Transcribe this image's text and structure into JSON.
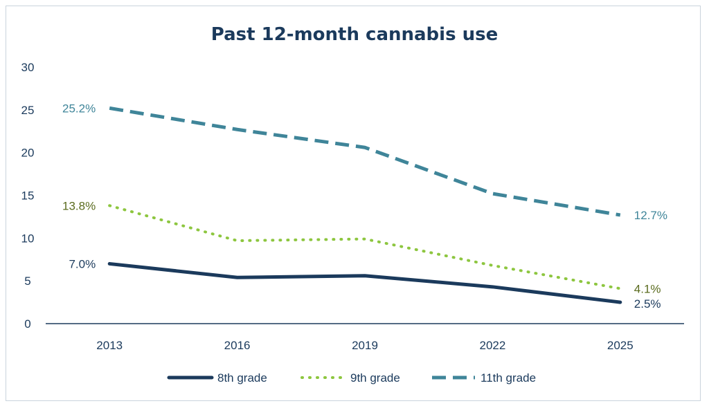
{
  "chart_data": {
    "type": "line",
    "title": "Past 12-month cannabis use",
    "categories": [
      "2013",
      "2016",
      "2019",
      "2022",
      "2025"
    ],
    "ylim": [
      0,
      30
    ],
    "yticks": [
      "0",
      "5",
      "10",
      "15",
      "20",
      "25",
      "30"
    ],
    "grid": false,
    "legend": "bottom",
    "series": [
      {
        "name": "8th grade",
        "values": [
          7.0,
          5.4,
          5.6,
          4.3,
          2.5
        ],
        "color": "#1b3a5c",
        "style": "solid",
        "labels": {
          "first": "7.0%",
          "last": "2.5%"
        }
      },
      {
        "name": "9th grade",
        "values": [
          13.8,
          9.7,
          9.9,
          6.8,
          4.1
        ],
        "color": "#8dc63f",
        "label_color": "#5a6b1e",
        "style": "dotted",
        "labels": {
          "first": "13.8%",
          "last": "4.1%"
        }
      },
      {
        "name": "11th grade",
        "values": [
          25.2,
          22.7,
          20.6,
          15.2,
          12.7
        ],
        "color": "#3f8599",
        "label_color": "#3f8599",
        "style": "dashed",
        "labels": {
          "first": "25.2%",
          "last": "12.7%"
        }
      }
    ]
  }
}
